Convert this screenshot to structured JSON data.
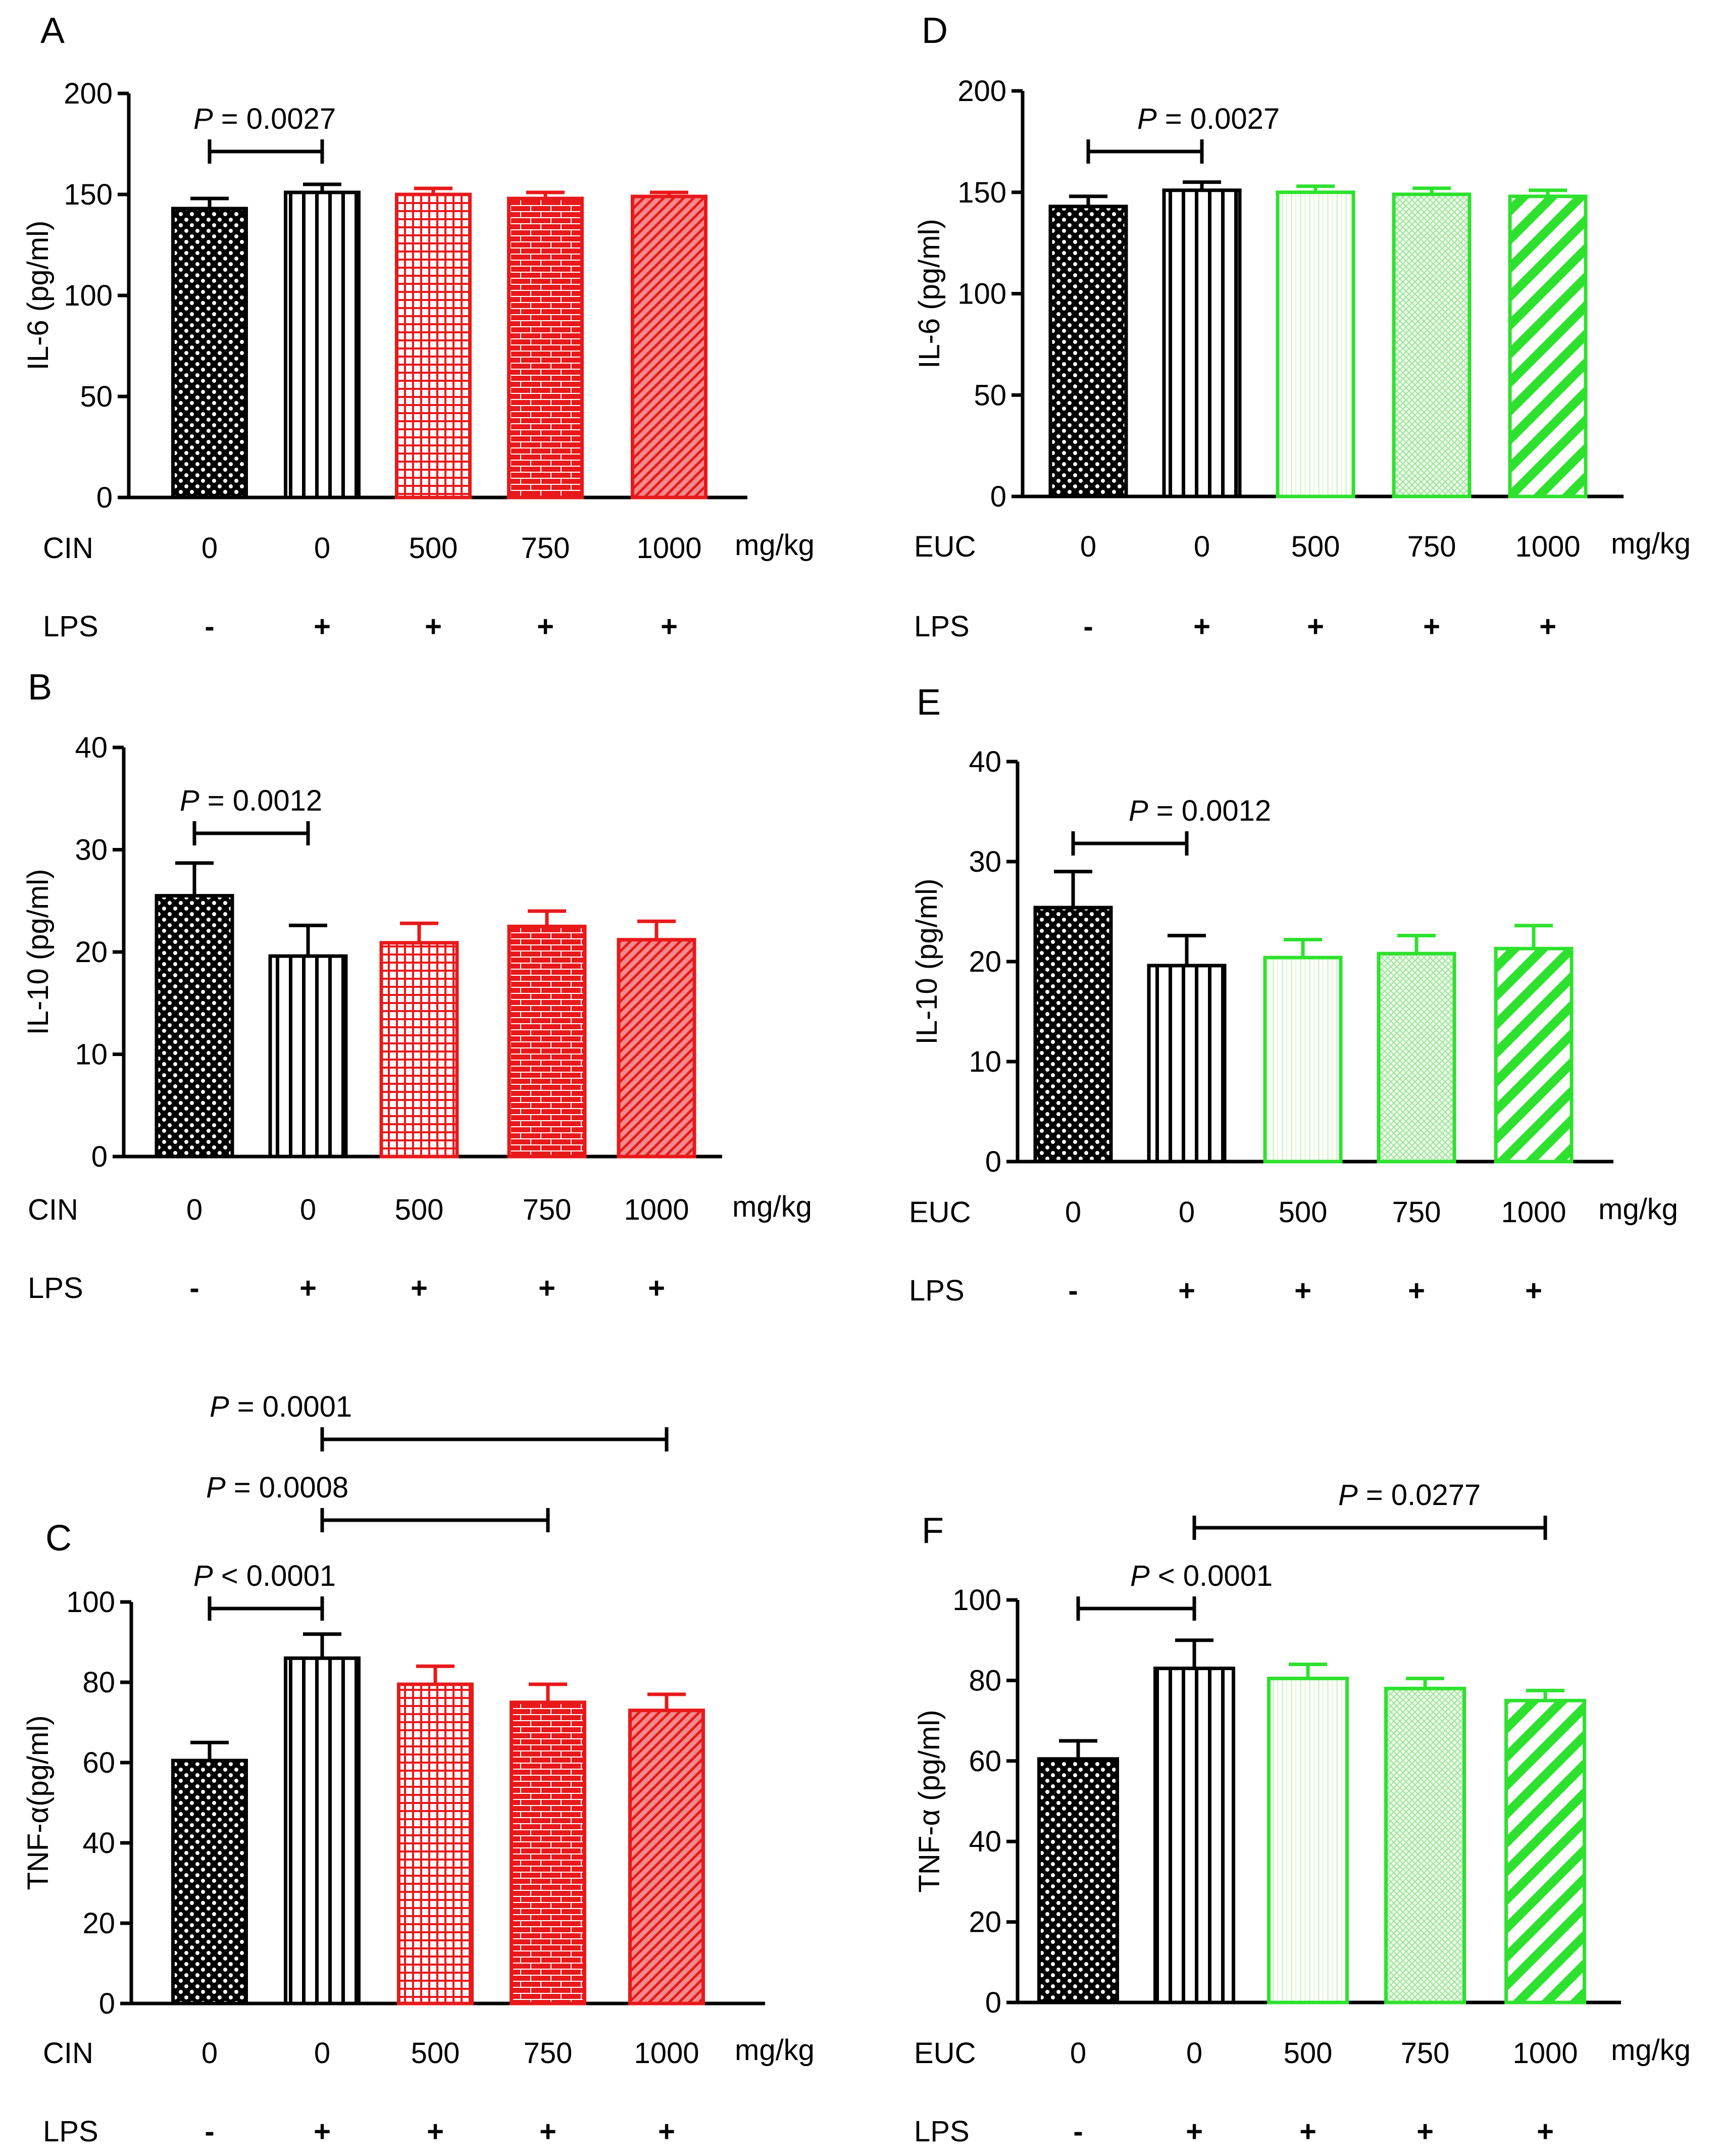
{
  "chart_data": [
    {
      "type": "bar",
      "panel_label": "A",
      "ylabel": "IL-6 (pg/ml)",
      "ylim": [
        0,
        200
      ],
      "yticks": [
        0,
        50,
        100,
        150,
        200
      ],
      "treatment": "CIN",
      "unit": "mg/kg",
      "doses": [
        "0",
        "0",
        "500",
        "750",
        "1000"
      ],
      "lps_label": "LPS",
      "lps": [
        "-",
        "+",
        "+",
        "+",
        "+"
      ],
      "values": [
        143,
        151,
        150,
        148,
        149
      ],
      "errors": [
        5,
        4,
        3,
        3,
        2
      ],
      "colors": [
        "#000000",
        "#000000",
        "#e8191b",
        "#e8191b",
        "#e8191b"
      ],
      "patterns": [
        "dots",
        "vlines",
        "grid",
        "brick",
        "diag"
      ],
      "comparisons": [
        {
          "from": 0,
          "to": 1,
          "p_label": "P",
          "p_text": " = 0.0027"
        }
      ]
    },
    {
      "type": "bar",
      "panel_label": "B",
      "ylabel": "IL-10 (pg/ml)",
      "ylim": [
        0,
        40
      ],
      "yticks": [
        0,
        10,
        20,
        30,
        40
      ],
      "treatment": "CIN",
      "unit": "mg/kg",
      "doses": [
        "0",
        "0",
        "500",
        "750",
        "1000"
      ],
      "lps_label": "LPS",
      "lps": [
        "-",
        "+",
        "+",
        "+",
        "+"
      ],
      "values": [
        25.5,
        19.6,
        20.9,
        22.5,
        21.2
      ],
      "errors": [
        3.2,
        3.0,
        1.9,
        1.5,
        1.8
      ],
      "colors": [
        "#000000",
        "#000000",
        "#e8191b",
        "#e8191b",
        "#e8191b"
      ],
      "patterns": [
        "dots",
        "vlines",
        "grid",
        "brick",
        "diag"
      ],
      "comparisons": [
        {
          "from": 0,
          "to": 1,
          "p_label": "P",
          "p_text": " = 0.0012"
        }
      ]
    },
    {
      "type": "bar",
      "panel_label": "C",
      "ylabel": "TNF-α(pg/ml)",
      "ylim": [
        0,
        100
      ],
      "yticks": [
        0,
        20,
        40,
        60,
        80,
        100
      ],
      "treatment": "CIN",
      "unit": "mg/kg",
      "doses": [
        "0",
        "0",
        "500",
        "750",
        "1000"
      ],
      "lps_label": "LPS",
      "lps": [
        "-",
        "+",
        "+",
        "+",
        "+"
      ],
      "values": [
        60.5,
        86,
        79.5,
        75,
        73
      ],
      "errors": [
        4.5,
        6,
        4.5,
        4.5,
        4
      ],
      "colors": [
        "#000000",
        "#000000",
        "#e8191b",
        "#e8191b",
        "#e8191b"
      ],
      "patterns": [
        "dots",
        "vlines",
        "grid",
        "brick",
        "diag"
      ],
      "comparisons": [
        {
          "from": 0,
          "to": 1,
          "p_label": "P",
          "p_text": " < 0.0001"
        },
        {
          "from": 1,
          "to": 3,
          "p_label": "P",
          "p_text": " = 0.0008"
        },
        {
          "from": 1,
          "to": 4,
          "p_label": "P",
          "p_text": " = 0.0001"
        }
      ]
    },
    {
      "type": "bar",
      "panel_label": "D",
      "ylabel": "IL-6 (pg/ml)",
      "ylim": [
        0,
        200
      ],
      "yticks": [
        0,
        50,
        100,
        150,
        200
      ],
      "treatment": "EUC",
      "unit": "mg/kg",
      "doses": [
        "0",
        "0",
        "500",
        "750",
        "1000"
      ],
      "lps_label": "LPS",
      "lps": [
        "-",
        "+",
        "+",
        "+",
        "+"
      ],
      "values": [
        143,
        151,
        150,
        149,
        148
      ],
      "errors": [
        5,
        4,
        3,
        3,
        3
      ],
      "colors": [
        "#000000",
        "#000000",
        "#2ee12e",
        "#2ee12e",
        "#2ee12e"
      ],
      "patterns": [
        "dots",
        "vlines",
        "fine",
        "crosshatch",
        "stripes"
      ],
      "comparisons": [
        {
          "from": 0,
          "to": 1,
          "p_label": "P",
          "p_text": " = 0.0027"
        }
      ]
    },
    {
      "type": "bar",
      "panel_label": "E",
      "ylabel": "IL-10 (pg/ml)",
      "ylim": [
        0,
        40
      ],
      "yticks": [
        0,
        10,
        20,
        30,
        40
      ],
      "treatment": "EUC",
      "unit": "mg/kg",
      "doses": [
        "0",
        "0",
        "500",
        "750",
        "1000"
      ],
      "lps_label": "LPS",
      "lps": [
        "-",
        "+",
        "+",
        "+",
        "+"
      ],
      "values": [
        25.4,
        19.6,
        20.4,
        20.8,
        21.3
      ],
      "errors": [
        3.6,
        3.0,
        1.8,
        1.8,
        2.3
      ],
      "colors": [
        "#000000",
        "#000000",
        "#2ee12e",
        "#2ee12e",
        "#2ee12e"
      ],
      "patterns": [
        "dots",
        "vlines",
        "fine",
        "crosshatch",
        "stripes"
      ],
      "comparisons": [
        {
          "from": 0,
          "to": 1,
          "p_label": "P",
          "p_text": " = 0.0012"
        }
      ]
    },
    {
      "type": "bar",
      "panel_label": "F",
      "ylabel": "TNF-α (pg/ml)",
      "ylim": [
        0,
        100
      ],
      "yticks": [
        0,
        20,
        40,
        60,
        80,
        100
      ],
      "treatment": "EUC",
      "unit": "mg/kg",
      "doses": [
        "0",
        "0",
        "500",
        "750",
        "1000"
      ],
      "lps_label": "LPS",
      "lps": [
        "-",
        "+",
        "+",
        "+",
        "+"
      ],
      "values": [
        60.5,
        83,
        80.5,
        78,
        75
      ],
      "errors": [
        4.5,
        7,
        3.5,
        2.5,
        2.5
      ],
      "colors": [
        "#000000",
        "#000000",
        "#2ee12e",
        "#2ee12e",
        "#2ee12e"
      ],
      "patterns": [
        "dots",
        "vlines",
        "fine",
        "crosshatch",
        "stripes"
      ],
      "comparisons": [
        {
          "from": 0,
          "to": 1,
          "p_label": "P",
          "p_text": " < 0.0001"
        },
        {
          "from": 1,
          "to": 4,
          "p_label": "P",
          "p_text": " = 0.0277"
        }
      ]
    }
  ]
}
